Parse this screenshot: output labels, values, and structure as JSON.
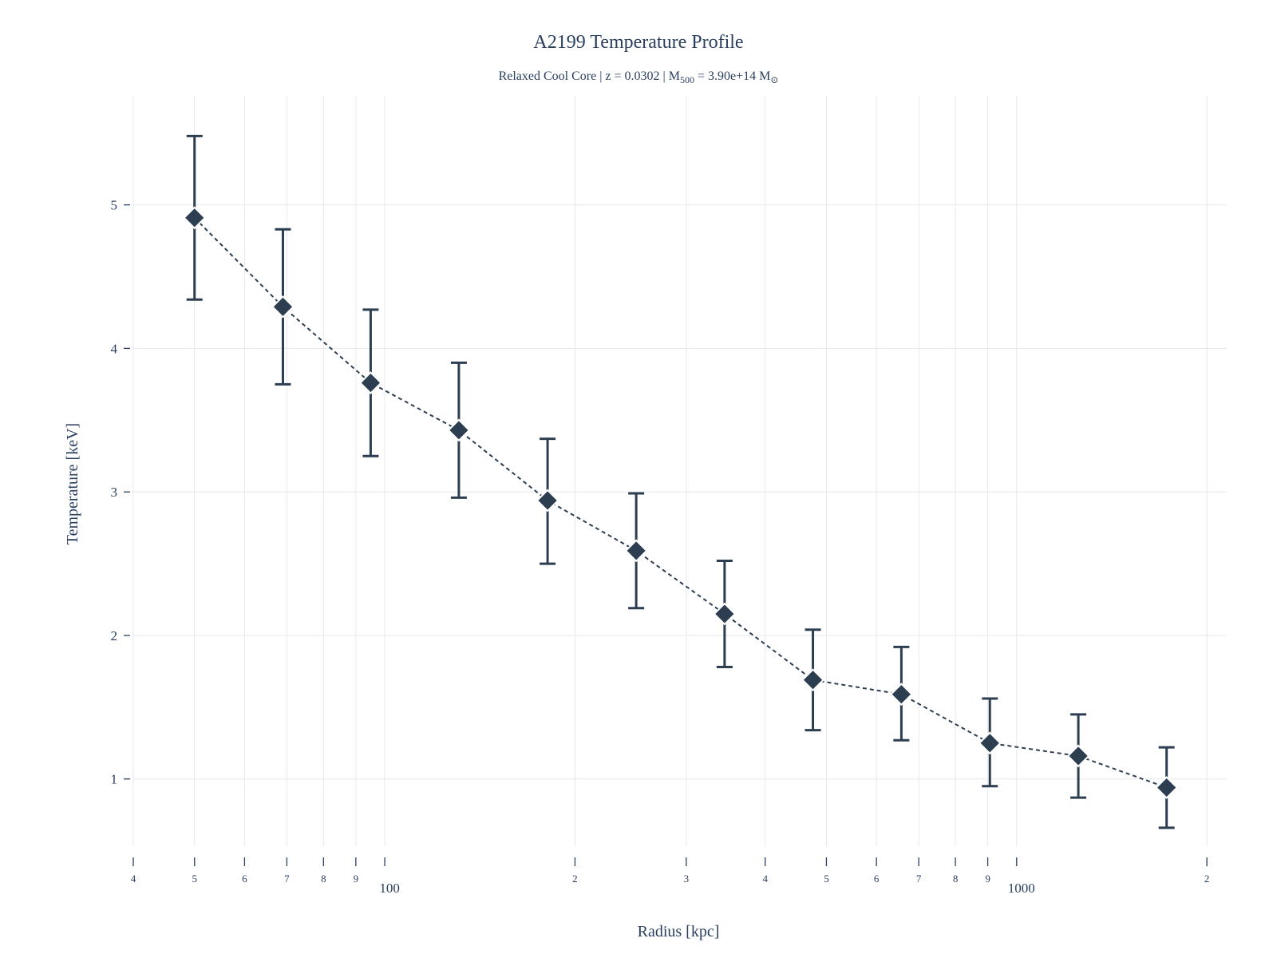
{
  "chart_data": {
    "type": "scatter",
    "title": "A2199 Temperature Profile",
    "subtitle": {
      "prefix": "Relaxed Cool Core | z = 0.0302 | M",
      "mass_subscript": "500",
      "middle": " = 3.90e+14 M",
      "sun_symbol": "⊙"
    },
    "xlabel": "Radius [kpc]",
    "ylabel": "Temperature [keV]",
    "x_scale": "log",
    "xlim": [
      40,
      2150
    ],
    "ylim": [
      0.42,
      5.76
    ],
    "grid": true,
    "line_style": "dashed",
    "marker": "diamond",
    "colors": {
      "series": "#2c3e50",
      "grid": "#e6e8ec",
      "text": "#2a3f5f"
    },
    "y_ticks": [
      {
        "value": 1,
        "label": "1"
      },
      {
        "value": 2,
        "label": "2"
      },
      {
        "value": 3,
        "label": "3"
      },
      {
        "value": 4,
        "label": "4"
      },
      {
        "value": 5,
        "label": "5"
      }
    ],
    "x_ticks": [
      {
        "value": 40,
        "label": "4",
        "major": false
      },
      {
        "value": 50,
        "label": "5",
        "major": false
      },
      {
        "value": 60,
        "label": "6",
        "major": false
      },
      {
        "value": 70,
        "label": "7",
        "major": false
      },
      {
        "value": 80,
        "label": "8",
        "major": false
      },
      {
        "value": 90,
        "label": "9",
        "major": false
      },
      {
        "value": 100,
        "label": "100",
        "major": true
      },
      {
        "value": 200,
        "label": "2",
        "major": false
      },
      {
        "value": 300,
        "label": "3",
        "major": false
      },
      {
        "value": 400,
        "label": "4",
        "major": false
      },
      {
        "value": 500,
        "label": "5",
        "major": false
      },
      {
        "value": 600,
        "label": "6",
        "major": false
      },
      {
        "value": 700,
        "label": "7",
        "major": false
      },
      {
        "value": 800,
        "label": "8",
        "major": false
      },
      {
        "value": 900,
        "label": "9",
        "major": false
      },
      {
        "value": 1000,
        "label": "1000",
        "major": true
      },
      {
        "value": 2000,
        "label": "2",
        "major": false
      }
    ],
    "series": [
      {
        "points": [
          {
            "x": 50,
            "y": 4.91,
            "y_low": 4.34,
            "y_high": 5.48
          },
          {
            "x": 69,
            "y": 4.29,
            "y_low": 3.75,
            "y_high": 4.83
          },
          {
            "x": 95,
            "y": 3.76,
            "y_low": 3.25,
            "y_high": 4.27
          },
          {
            "x": 131,
            "y": 3.43,
            "y_low": 2.96,
            "y_high": 3.9
          },
          {
            "x": 181,
            "y": 2.94,
            "y_low": 2.5,
            "y_high": 3.37
          },
          {
            "x": 250,
            "y": 2.59,
            "y_low": 2.19,
            "y_high": 2.99
          },
          {
            "x": 345,
            "y": 2.15,
            "y_low": 1.78,
            "y_high": 2.52
          },
          {
            "x": 476,
            "y": 1.69,
            "y_low": 1.34,
            "y_high": 2.04
          },
          {
            "x": 657,
            "y": 1.59,
            "y_low": 1.27,
            "y_high": 1.92
          },
          {
            "x": 907,
            "y": 1.25,
            "y_low": 0.95,
            "y_high": 1.56
          },
          {
            "x": 1252,
            "y": 1.16,
            "y_low": 0.87,
            "y_high": 1.45
          },
          {
            "x": 1727,
            "y": 0.94,
            "y_low": 0.66,
            "y_high": 1.22
          }
        ]
      }
    ]
  }
}
